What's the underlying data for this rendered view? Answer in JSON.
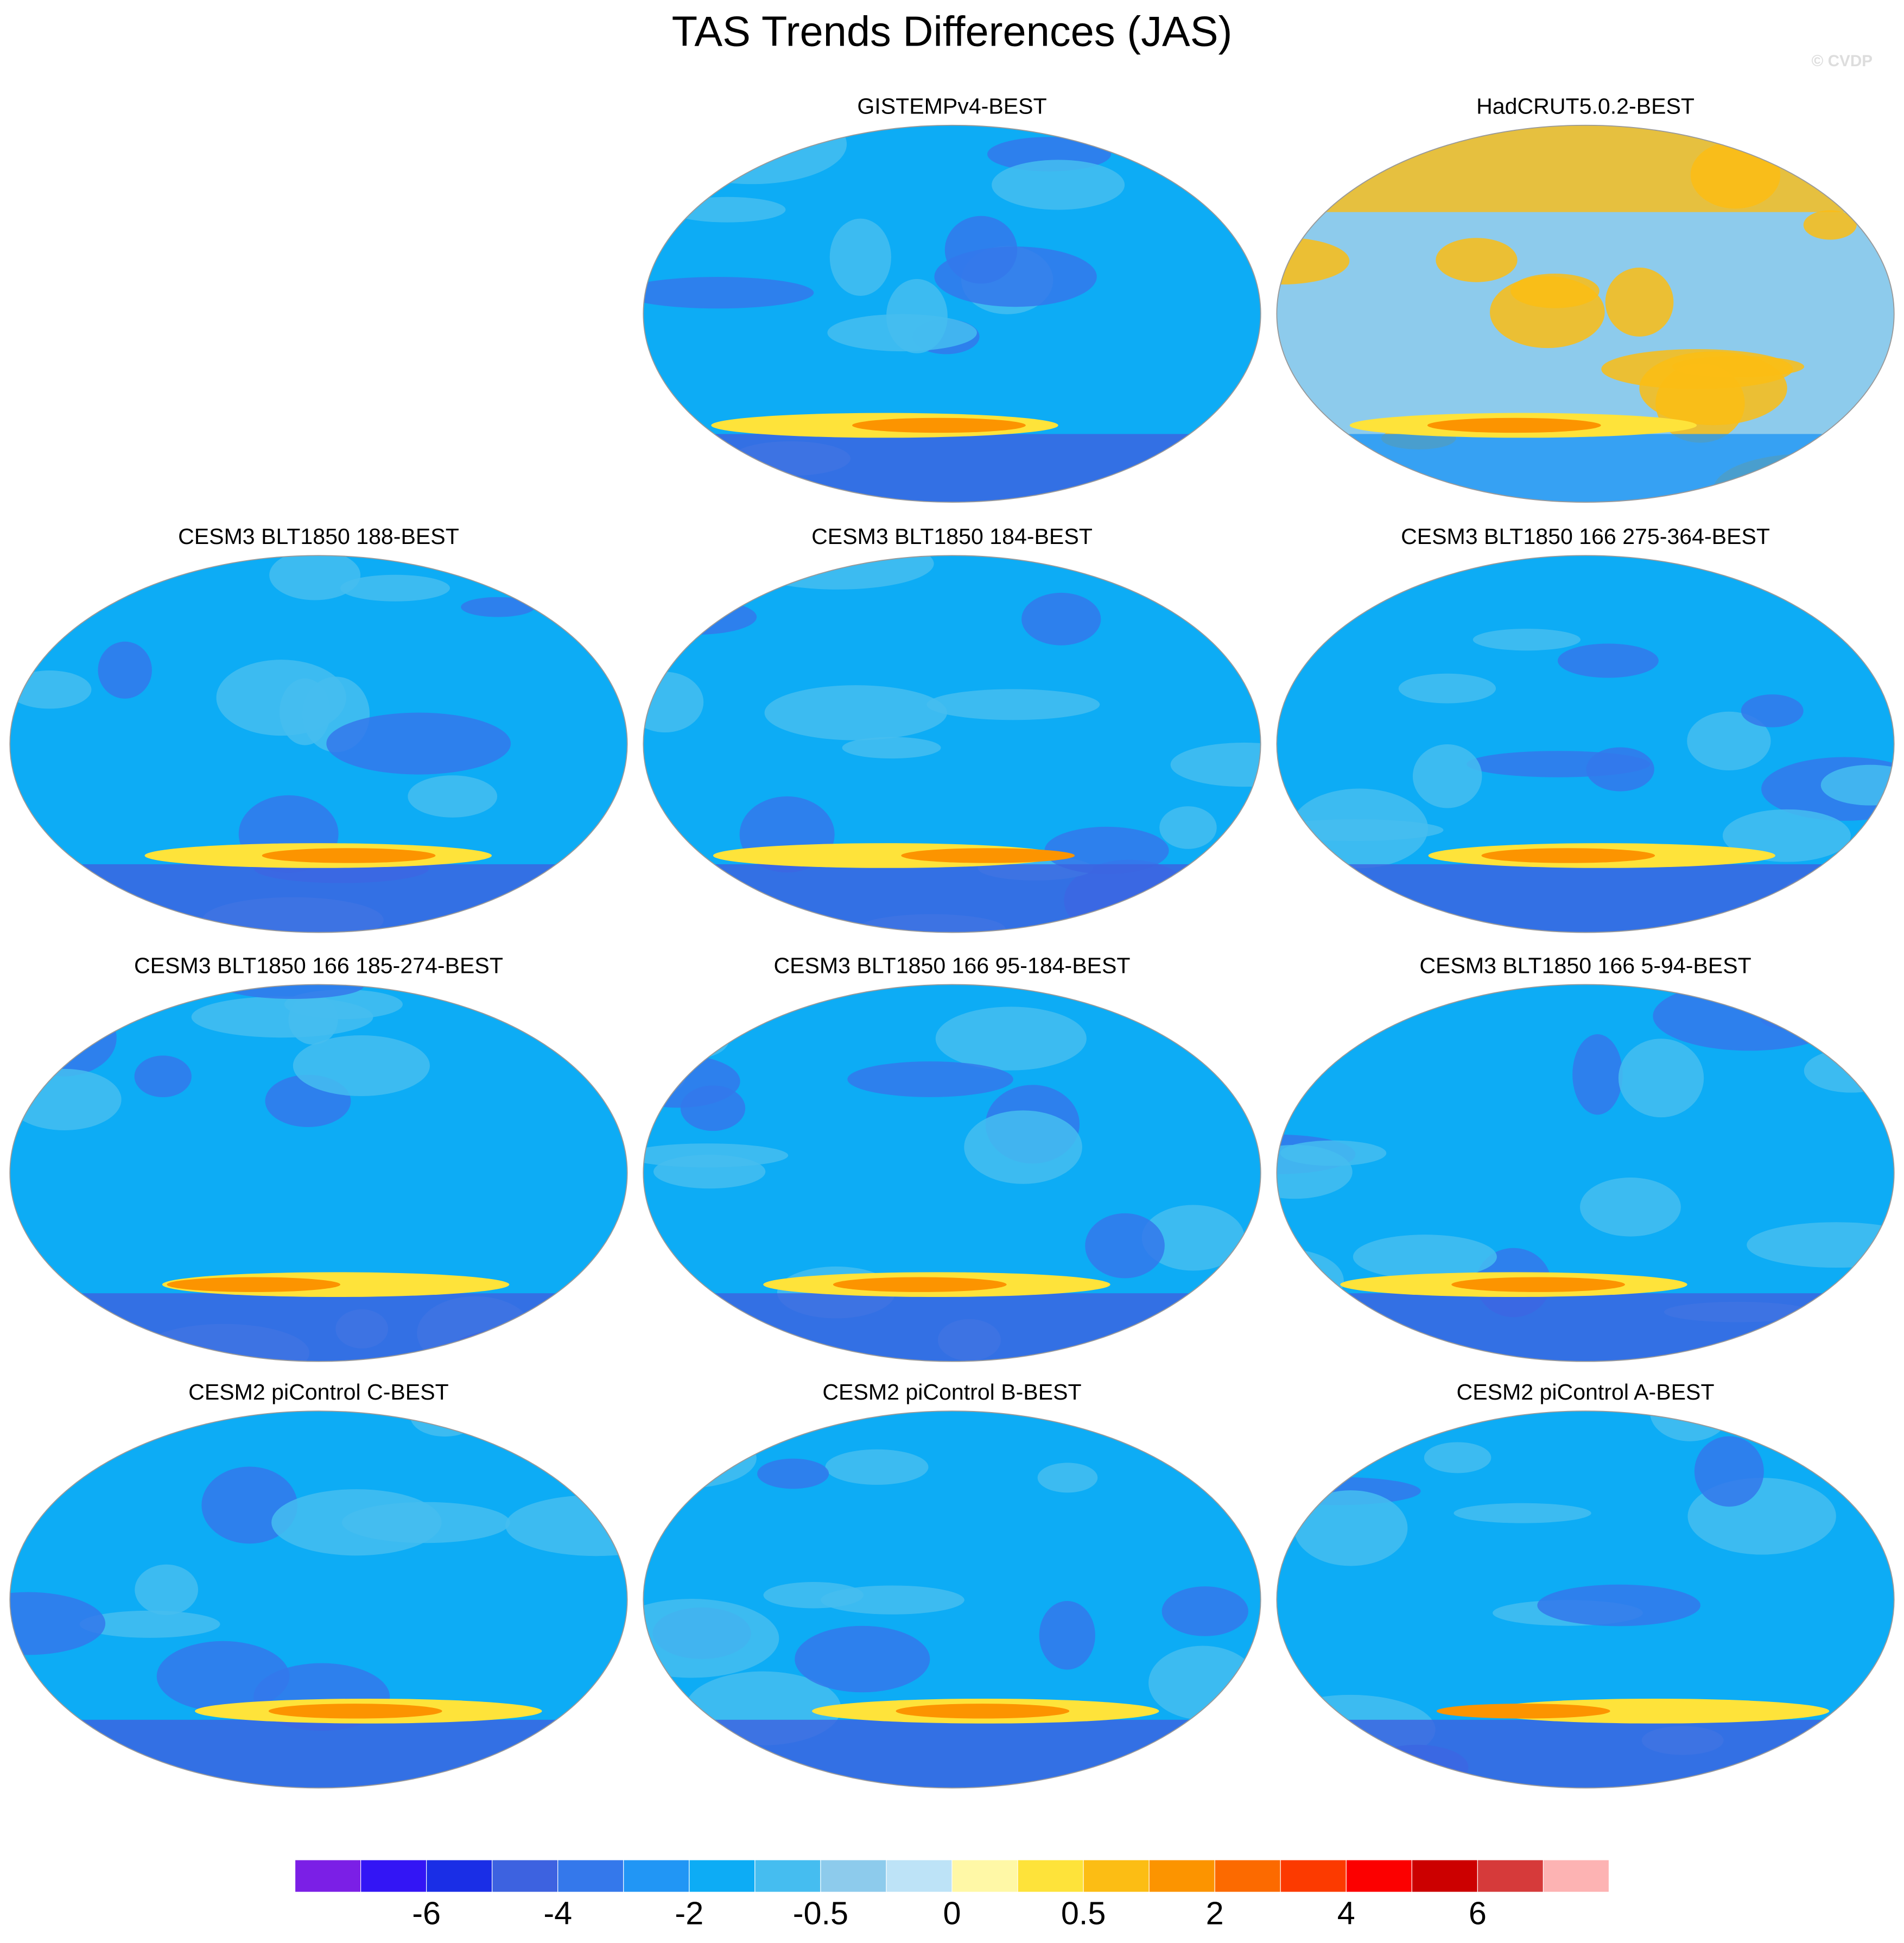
{
  "title": "TAS Trends Differences (JAS)",
  "watermark": "© CVDP",
  "panels": [
    {
      "title": "GISTEMPv4-BEST"
    },
    {
      "title": "HadCRUT5.0.2-BEST"
    },
    {
      "title": "CESM3 BLT1850 188-BEST"
    },
    {
      "title": "CESM3 BLT1850 184-BEST"
    },
    {
      "title": "CESM3 BLT1850 166 275-364-BEST"
    },
    {
      "title": "CESM3 BLT1850 166 185-274-BEST"
    },
    {
      "title": "CESM3 BLT1850 166 95-184-BEST"
    },
    {
      "title": "CESM3 BLT1850 166 5-94-BEST"
    },
    {
      "title": "CESM2 piControl C-BEST"
    },
    {
      "title": "CESM2 piControl B-BEST"
    },
    {
      "title": "CESM2 piControl A-BEST"
    }
  ],
  "colorbar": {
    "colors": [
      "#7b1fe6",
      "#3315f5",
      "#1a2ee6",
      "#3d62e0",
      "#3478eb",
      "#2196f5",
      "#0dacf5",
      "#45bdf0",
      "#8dcbec",
      "#bde3f7",
      "#fff8a6",
      "#fee33a",
      "#fcbd14",
      "#fc9400",
      "#fc6a00",
      "#fc3a00",
      "#fc0000",
      "#cc0000",
      "#d63a3a",
      "#fdb3b3"
    ],
    "labels": [
      -6,
      -4,
      -2,
      -0.5,
      0,
      0.5,
      2,
      4,
      6
    ]
  }
}
